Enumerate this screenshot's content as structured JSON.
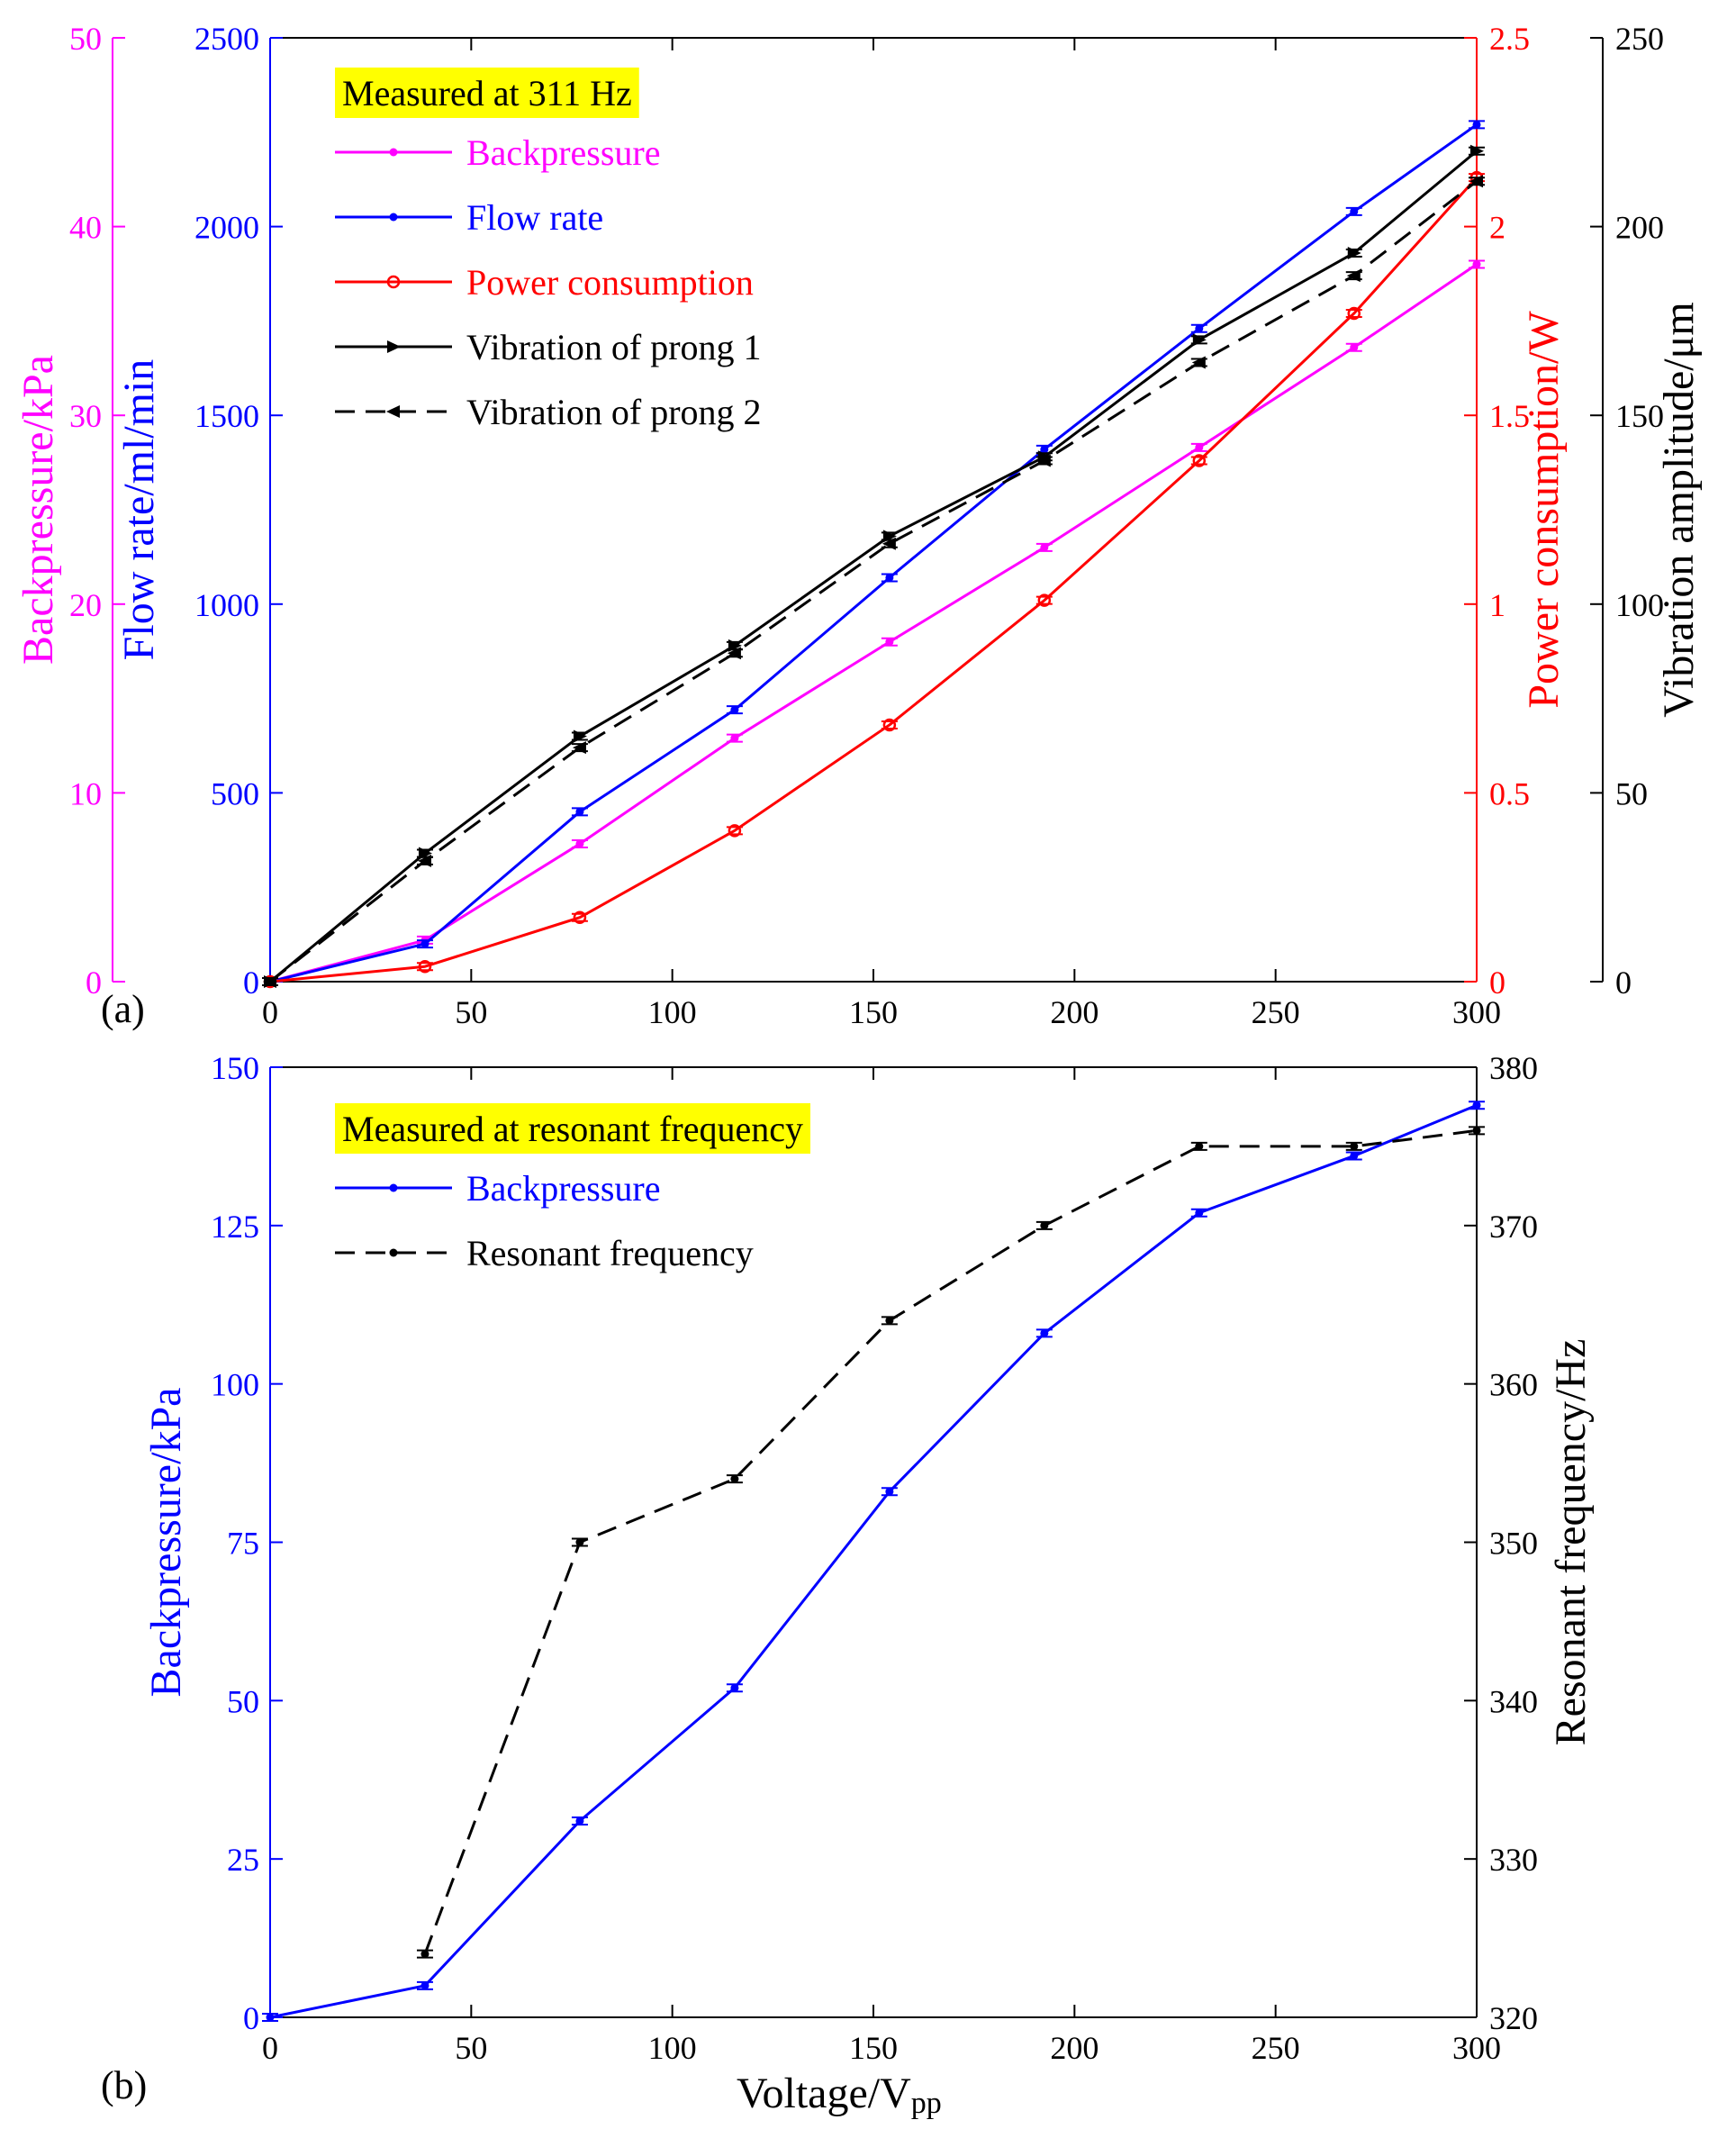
{
  "colors": {
    "magenta": "#ff00ff",
    "blue": "#0000ff",
    "red": "#ff0000",
    "black": "#000000",
    "legend_highlight": "#ffff00"
  },
  "panel_labels": {
    "a": "(a)",
    "b": "(b)"
  },
  "x_axis_label": {
    "main": "Voltage/V",
    "sub": "pp"
  },
  "chart_data": [
    {
      "id": "a",
      "type": "line",
      "legend_title": "Measured at 311 Hz",
      "x": [
        0,
        38.5,
        77,
        115.5,
        154,
        192.5,
        231,
        269.5,
        300
      ],
      "xlim": [
        0,
        300
      ],
      "xticks": [
        0,
        50,
        100,
        150,
        200,
        250,
        300
      ],
      "axes": [
        {
          "id": "bp",
          "side": "left-outer",
          "label": "Backpressure/kPa",
          "color": "#ff00ff",
          "ylim": [
            0,
            50
          ],
          "ticks": [
            0,
            10,
            20,
            30,
            40,
            50
          ]
        },
        {
          "id": "flow",
          "side": "left",
          "label": "Flow rate/ml/min",
          "color": "#0000ff",
          "ylim": [
            0,
            2500
          ],
          "ticks": [
            0,
            500,
            1000,
            1500,
            2000,
            2500
          ]
        },
        {
          "id": "power",
          "side": "right",
          "label": "Power consumption/W",
          "color": "#ff0000",
          "ylim": [
            0,
            2.5
          ],
          "ticks": [
            0,
            0.5,
            1,
            1.5,
            2,
            2.5
          ],
          "tick_labels": [
            "0",
            "0.5",
            "1",
            "1.5",
            "2",
            "2.5"
          ]
        },
        {
          "id": "vib",
          "side": "right-outer",
          "label": "Vibration amplitude/μm",
          "color": "#000000",
          "ylim": [
            0,
            250
          ],
          "ticks": [
            0,
            50,
            100,
            150,
            200,
            250
          ]
        }
      ],
      "series": [
        {
          "name": "Backpressure",
          "axis": "bp",
          "color": "#ff00ff",
          "dash": "solid",
          "marker": "dot",
          "values": [
            0,
            2.2,
            7.3,
            12.9,
            18.0,
            23.0,
            28.3,
            33.6,
            38.0
          ]
        },
        {
          "name": "Flow rate",
          "axis": "flow",
          "color": "#0000ff",
          "dash": "solid",
          "marker": "dot",
          "values": [
            0,
            100,
            450,
            720,
            1070,
            1410,
            1730,
            2040,
            2270
          ]
        },
        {
          "name": "Power consumption",
          "axis": "power",
          "color": "#ff0000",
          "dash": "solid",
          "marker": "circle",
          "values": [
            0,
            0.04,
            0.17,
            0.4,
            0.68,
            1.01,
            1.38,
            1.77,
            2.13
          ]
        },
        {
          "name": "Vibration of prong 1",
          "axis": "vib",
          "color": "#000000",
          "dash": "solid",
          "marker": "triangle-right",
          "values": [
            0,
            34,
            65,
            89,
            118,
            139,
            170,
            193,
            220
          ]
        },
        {
          "name": "Vibration of prong 2",
          "axis": "vib",
          "color": "#000000",
          "dash": "dashed",
          "marker": "triangle-left",
          "values": [
            0,
            32,
            62,
            87,
            116,
            138,
            164,
            187,
            212
          ]
        }
      ]
    },
    {
      "id": "b",
      "type": "line",
      "legend_title": "Measured at resonant frequency",
      "x": [
        0,
        38.5,
        77,
        115.5,
        154,
        192.5,
        231,
        269.5,
        300
      ],
      "xlim": [
        0,
        300
      ],
      "xticks": [
        0,
        50,
        100,
        150,
        200,
        250,
        300
      ],
      "axes": [
        {
          "id": "bp",
          "side": "left",
          "label": "Backpressure/kPa",
          "color": "#0000ff",
          "ylim": [
            0,
            150
          ],
          "ticks": [
            0,
            25,
            50,
            75,
            100,
            125,
            150
          ]
        },
        {
          "id": "freq",
          "side": "right",
          "label": "Resonant frequency/Hz",
          "color": "#000000",
          "ylim": [
            320,
            380
          ],
          "ticks": [
            320,
            330,
            340,
            350,
            360,
            370,
            380
          ]
        }
      ],
      "series": [
        {
          "name": "Backpressure",
          "axis": "bp",
          "color": "#0000ff",
          "dash": "solid",
          "marker": "dot",
          "values": [
            0,
            5,
            31,
            52,
            83,
            108,
            127,
            136,
            144
          ]
        },
        {
          "name": "Resonant frequency",
          "axis": "freq",
          "color": "#000000",
          "dash": "dashed",
          "marker": "dot",
          "values": [
            null,
            324,
            350,
            354,
            364,
            370,
            375,
            375,
            376
          ]
        }
      ]
    }
  ]
}
